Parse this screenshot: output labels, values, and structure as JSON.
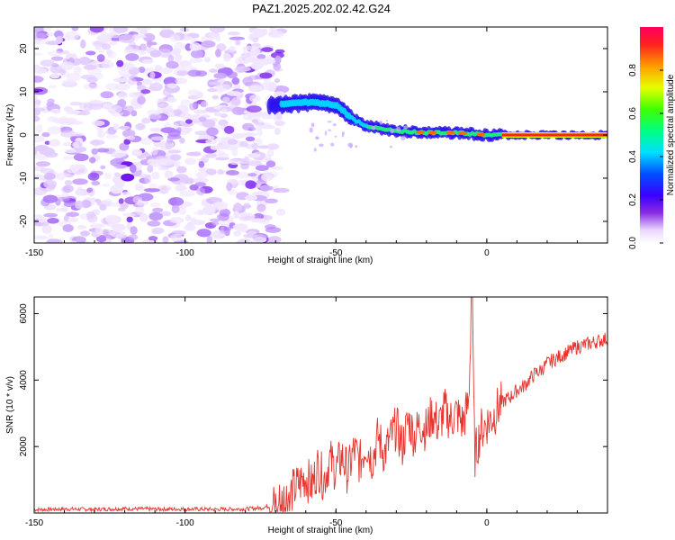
{
  "title": "PAZ1.2025.202.02.42.G24",
  "chart_data": [
    {
      "type": "heatmap",
      "xlabel": "Height of straight line (km)",
      "ylabel": "Frequency (Hz)",
      "xlim": [
        -150,
        40
      ],
      "ylim": [
        -25,
        25
      ],
      "x_ticks": [
        -150,
        -100,
        -50,
        0
      ],
      "y_ticks": [
        -20,
        -10,
        0,
        10,
        20
      ],
      "colorbar": {
        "label": "Normalized spectral amplitude",
        "range": [
          0,
          1
        ],
        "ticks": [
          0.0,
          0.2,
          0.4,
          0.6,
          0.8
        ]
      },
      "ridge": {
        "description_points": [
          {
            "x": -68,
            "y": 7
          },
          {
            "x": -60,
            "y": 7.5
          },
          {
            "x": -50,
            "y": 7
          },
          {
            "x": -45,
            "y": 4
          },
          {
            "x": -40,
            "y": 2
          },
          {
            "x": -30,
            "y": 1
          },
          {
            "x": -20,
            "y": 0.5
          },
          {
            "x": -10,
            "y": 0.5
          },
          {
            "x": 0,
            "y": 0
          },
          {
            "x": 40,
            "y": 0
          }
        ]
      },
      "grid": false
    },
    {
      "type": "line",
      "xlabel": "Height of straight line (km)",
      "ylabel": "SNR (10 * v/v)",
      "xlim": [
        -150,
        40
      ],
      "ylim": [
        0,
        6500
      ],
      "x_ticks": [
        -150,
        -100,
        -50,
        0
      ],
      "y_ticks": [
        2000,
        4000,
        6000
      ],
      "line_color": "#e8342e",
      "series": [
        {
          "x": [
            -150,
            -140,
            -130,
            -120,
            -110,
            -100,
            -90,
            -80,
            -75,
            -70,
            -65,
            -62,
            -60,
            -58,
            -56,
            -54,
            -52,
            -50,
            -48,
            -46,
            -44,
            -42,
            -40,
            -38,
            -36,
            -34,
            -32,
            -30,
            -28,
            -26,
            -24,
            -22,
            -20,
            -18,
            -16,
            -14,
            -12,
            -10,
            -8,
            -6,
            -5,
            -4,
            -2,
            0,
            2,
            4,
            6,
            8,
            10,
            12,
            14,
            16,
            18,
            20,
            22,
            24,
            26,
            28,
            30,
            32,
            34,
            36,
            38,
            40
          ],
          "values": [
            100,
            120,
            110,
            130,
            115,
            120,
            110,
            125,
            150,
            250,
            600,
            900,
            1100,
            800,
            1400,
            1000,
            1600,
            1300,
            1700,
            1200,
            1900,
            1500,
            2100,
            1600,
            2300,
            1800,
            2200,
            2600,
            2000,
            2800,
            2300,
            2700,
            2500,
            3000,
            2600,
            3100,
            2800,
            3000,
            2700,
            3300,
            6500,
            1700,
            2500,
            2700,
            2900,
            3200,
            3400,
            3500,
            3700,
            3800,
            4000,
            4200,
            4300,
            4500,
            4600,
            4700,
            4800,
            4900,
            5000,
            5050,
            5100,
            5150,
            5200,
            5250
          ]
        }
      ],
      "grid": false
    }
  ]
}
